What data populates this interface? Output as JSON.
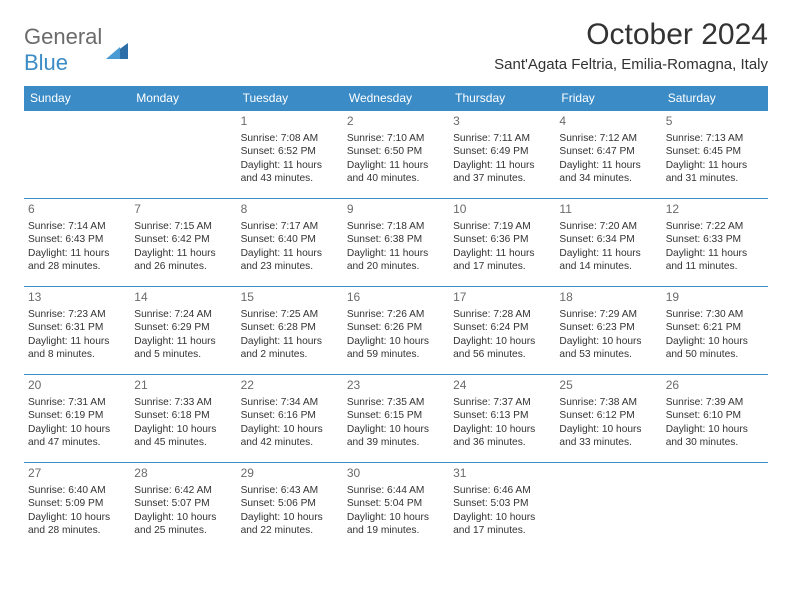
{
  "brand": {
    "name1": "General",
    "name2": "Blue"
  },
  "title": "October 2024",
  "location": "Sant'Agata Feltria, Emilia-Romagna, Italy",
  "colors": {
    "accent": "#3b8bc6",
    "text": "#333333",
    "muted": "#6b6b6b",
    "background": "#ffffff"
  },
  "typography": {
    "title_fontsize": 30,
    "location_fontsize": 15,
    "header_fontsize": 12,
    "daynum_fontsize": 12,
    "body_fontsize": 10.2
  },
  "calendar": {
    "columns": [
      "Sunday",
      "Monday",
      "Tuesday",
      "Wednesday",
      "Thursday",
      "Friday",
      "Saturday"
    ],
    "weeks": [
      [
        null,
        null,
        {
          "d": "1",
          "sr": "7:08 AM",
          "ss": "6:52 PM",
          "dl": "11 hours and 43 minutes."
        },
        {
          "d": "2",
          "sr": "7:10 AM",
          "ss": "6:50 PM",
          "dl": "11 hours and 40 minutes."
        },
        {
          "d": "3",
          "sr": "7:11 AM",
          "ss": "6:49 PM",
          "dl": "11 hours and 37 minutes."
        },
        {
          "d": "4",
          "sr": "7:12 AM",
          "ss": "6:47 PM",
          "dl": "11 hours and 34 minutes."
        },
        {
          "d": "5",
          "sr": "7:13 AM",
          "ss": "6:45 PM",
          "dl": "11 hours and 31 minutes."
        }
      ],
      [
        {
          "d": "6",
          "sr": "7:14 AM",
          "ss": "6:43 PM",
          "dl": "11 hours and 28 minutes."
        },
        {
          "d": "7",
          "sr": "7:15 AM",
          "ss": "6:42 PM",
          "dl": "11 hours and 26 minutes."
        },
        {
          "d": "8",
          "sr": "7:17 AM",
          "ss": "6:40 PM",
          "dl": "11 hours and 23 minutes."
        },
        {
          "d": "9",
          "sr": "7:18 AM",
          "ss": "6:38 PM",
          "dl": "11 hours and 20 minutes."
        },
        {
          "d": "10",
          "sr": "7:19 AM",
          "ss": "6:36 PM",
          "dl": "11 hours and 17 minutes."
        },
        {
          "d": "11",
          "sr": "7:20 AM",
          "ss": "6:34 PM",
          "dl": "11 hours and 14 minutes."
        },
        {
          "d": "12",
          "sr": "7:22 AM",
          "ss": "6:33 PM",
          "dl": "11 hours and 11 minutes."
        }
      ],
      [
        {
          "d": "13",
          "sr": "7:23 AM",
          "ss": "6:31 PM",
          "dl": "11 hours and 8 minutes."
        },
        {
          "d": "14",
          "sr": "7:24 AM",
          "ss": "6:29 PM",
          "dl": "11 hours and 5 minutes."
        },
        {
          "d": "15",
          "sr": "7:25 AM",
          "ss": "6:28 PM",
          "dl": "11 hours and 2 minutes."
        },
        {
          "d": "16",
          "sr": "7:26 AM",
          "ss": "6:26 PM",
          "dl": "10 hours and 59 minutes."
        },
        {
          "d": "17",
          "sr": "7:28 AM",
          "ss": "6:24 PM",
          "dl": "10 hours and 56 minutes."
        },
        {
          "d": "18",
          "sr": "7:29 AM",
          "ss": "6:23 PM",
          "dl": "10 hours and 53 minutes."
        },
        {
          "d": "19",
          "sr": "7:30 AM",
          "ss": "6:21 PM",
          "dl": "10 hours and 50 minutes."
        }
      ],
      [
        {
          "d": "20",
          "sr": "7:31 AM",
          "ss": "6:19 PM",
          "dl": "10 hours and 47 minutes."
        },
        {
          "d": "21",
          "sr": "7:33 AM",
          "ss": "6:18 PM",
          "dl": "10 hours and 45 minutes."
        },
        {
          "d": "22",
          "sr": "7:34 AM",
          "ss": "6:16 PM",
          "dl": "10 hours and 42 minutes."
        },
        {
          "d": "23",
          "sr": "7:35 AM",
          "ss": "6:15 PM",
          "dl": "10 hours and 39 minutes."
        },
        {
          "d": "24",
          "sr": "7:37 AM",
          "ss": "6:13 PM",
          "dl": "10 hours and 36 minutes."
        },
        {
          "d": "25",
          "sr": "7:38 AM",
          "ss": "6:12 PM",
          "dl": "10 hours and 33 minutes."
        },
        {
          "d": "26",
          "sr": "7:39 AM",
          "ss": "6:10 PM",
          "dl": "10 hours and 30 minutes."
        }
      ],
      [
        {
          "d": "27",
          "sr": "6:40 AM",
          "ss": "5:09 PM",
          "dl": "10 hours and 28 minutes."
        },
        {
          "d": "28",
          "sr": "6:42 AM",
          "ss": "5:07 PM",
          "dl": "10 hours and 25 minutes."
        },
        {
          "d": "29",
          "sr": "6:43 AM",
          "ss": "5:06 PM",
          "dl": "10 hours and 22 minutes."
        },
        {
          "d": "30",
          "sr": "6:44 AM",
          "ss": "5:04 PM",
          "dl": "10 hours and 19 minutes."
        },
        {
          "d": "31",
          "sr": "6:46 AM",
          "ss": "5:03 PM",
          "dl": "10 hours and 17 minutes."
        },
        null,
        null
      ]
    ]
  },
  "labels": {
    "sunrise": "Sunrise:",
    "sunset": "Sunset:",
    "daylight": "Daylight:"
  }
}
